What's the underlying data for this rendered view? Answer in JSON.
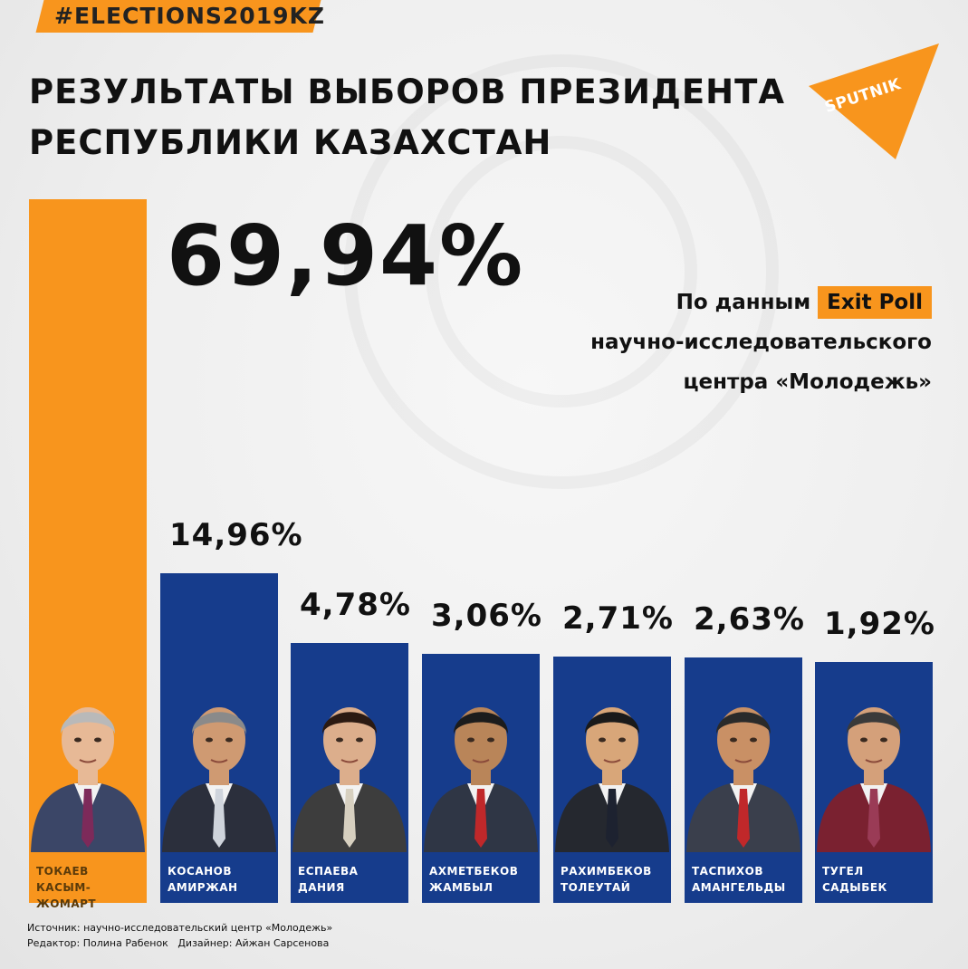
{
  "hashtag": "#ELECTIONS2019KZ",
  "title_lines": [
    "РЕЗУЛЬТАТЫ ВЫБОРОВ ПРЕЗИДЕНТА",
    "РЕСПУБЛИКИ КАЗАХСТАН"
  ],
  "logo": {
    "text": "SPUTNIK",
    "icon": "sputnik-logo-icon",
    "color": "#f8951d"
  },
  "source_note": {
    "prefix": "По данным",
    "highlight": "Exit Poll",
    "line2": "научно-исследовательского",
    "line3": "центра «Молодежь»"
  },
  "footer": {
    "source": "Источник: научно-исследовательский центр «Молодежь»",
    "editor": "Редактор: Полина Рабенок",
    "designer": "Дизайнер: Айжан Сарсенова"
  },
  "colors": {
    "accent": "#f8951d",
    "bar": "#163c8c"
  },
  "chart_data": {
    "type": "bar",
    "title": "РЕЗУЛЬТАТЫ ВЫБОРОВ ПРЕЗИДЕНТА РЕСПУБЛИКИ КАЗАХСТАН",
    "categories": [
      [
        "ТОКАЕВ",
        "КАСЫМ-ЖОМАРТ"
      ],
      [
        "КОСАНОВ",
        "АМИРЖАН"
      ],
      [
        "ЕСПАЕВА",
        "ДАНИЯ"
      ],
      [
        "АХМЕТБЕКОВ",
        "ЖАМБЫЛ"
      ],
      [
        "РАХИМБЕКОВ",
        "ТОЛЕУТАЙ"
      ],
      [
        "ТАСПИХОВ",
        "АМАНГЕЛЬДЫ"
      ],
      [
        "ТУГЕЛ",
        "САДЫБЕК"
      ]
    ],
    "values": [
      69.94,
      14.96,
      4.78,
      3.06,
      2.71,
      2.63,
      1.92
    ],
    "value_labels": [
      "69,94%",
      "14,96%",
      "4,78%",
      "3,06%",
      "2,71%",
      "2,63%",
      "1,92%"
    ],
    "unit": "%",
    "highlight_index": 0
  }
}
